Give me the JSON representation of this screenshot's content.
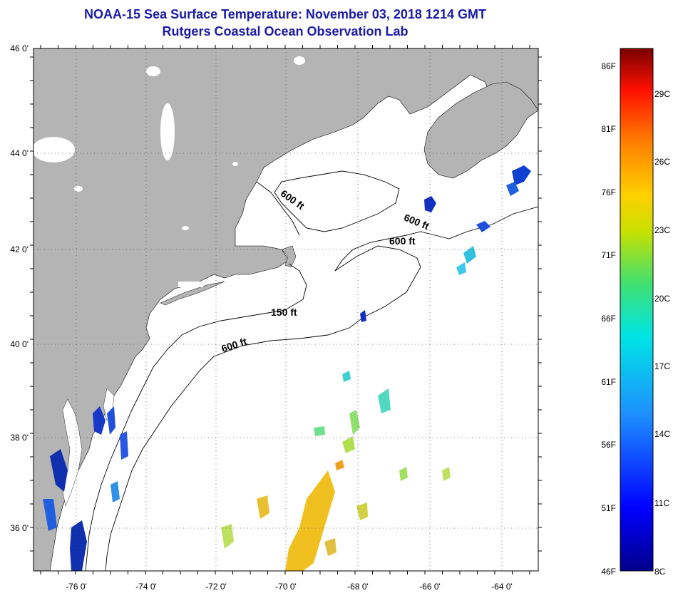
{
  "title_line1": "NOAA-15 Sea Surface Temperature:  November 03, 2018 1214 GMT",
  "title_line2": "Rutgers Coastal Ocean Observation Lab",
  "lat_labels": [
    "46 0'",
    "44 0'",
    "42 0'",
    "40 0'",
    "38 0'",
    "36 0'"
  ],
  "lon_labels": [
    "-76 0'",
    "-74 0'",
    "-72 0'",
    "-70 0'",
    "-68 0'",
    "-66 0'",
    "-64 0'"
  ],
  "colorbar": {
    "fahrenheit": [
      "86F",
      "81F",
      "76F",
      "71F",
      "66F",
      "61F",
      "56F",
      "51F",
      "46F"
    ],
    "celsius": [
      "29C",
      "26C",
      "23C",
      "20C",
      "17C",
      "14C",
      "11C",
      "8C"
    ]
  },
  "contours": {
    "c600a": "600 ft",
    "c600b": "600 ft",
    "c600c": "600 ft",
    "c150": "150 ft",
    "c600d": "600 ft"
  },
  "colors": {
    "land": "#b4b4b4",
    "water": "#ffffff",
    "title": "#1a1aa6"
  }
}
